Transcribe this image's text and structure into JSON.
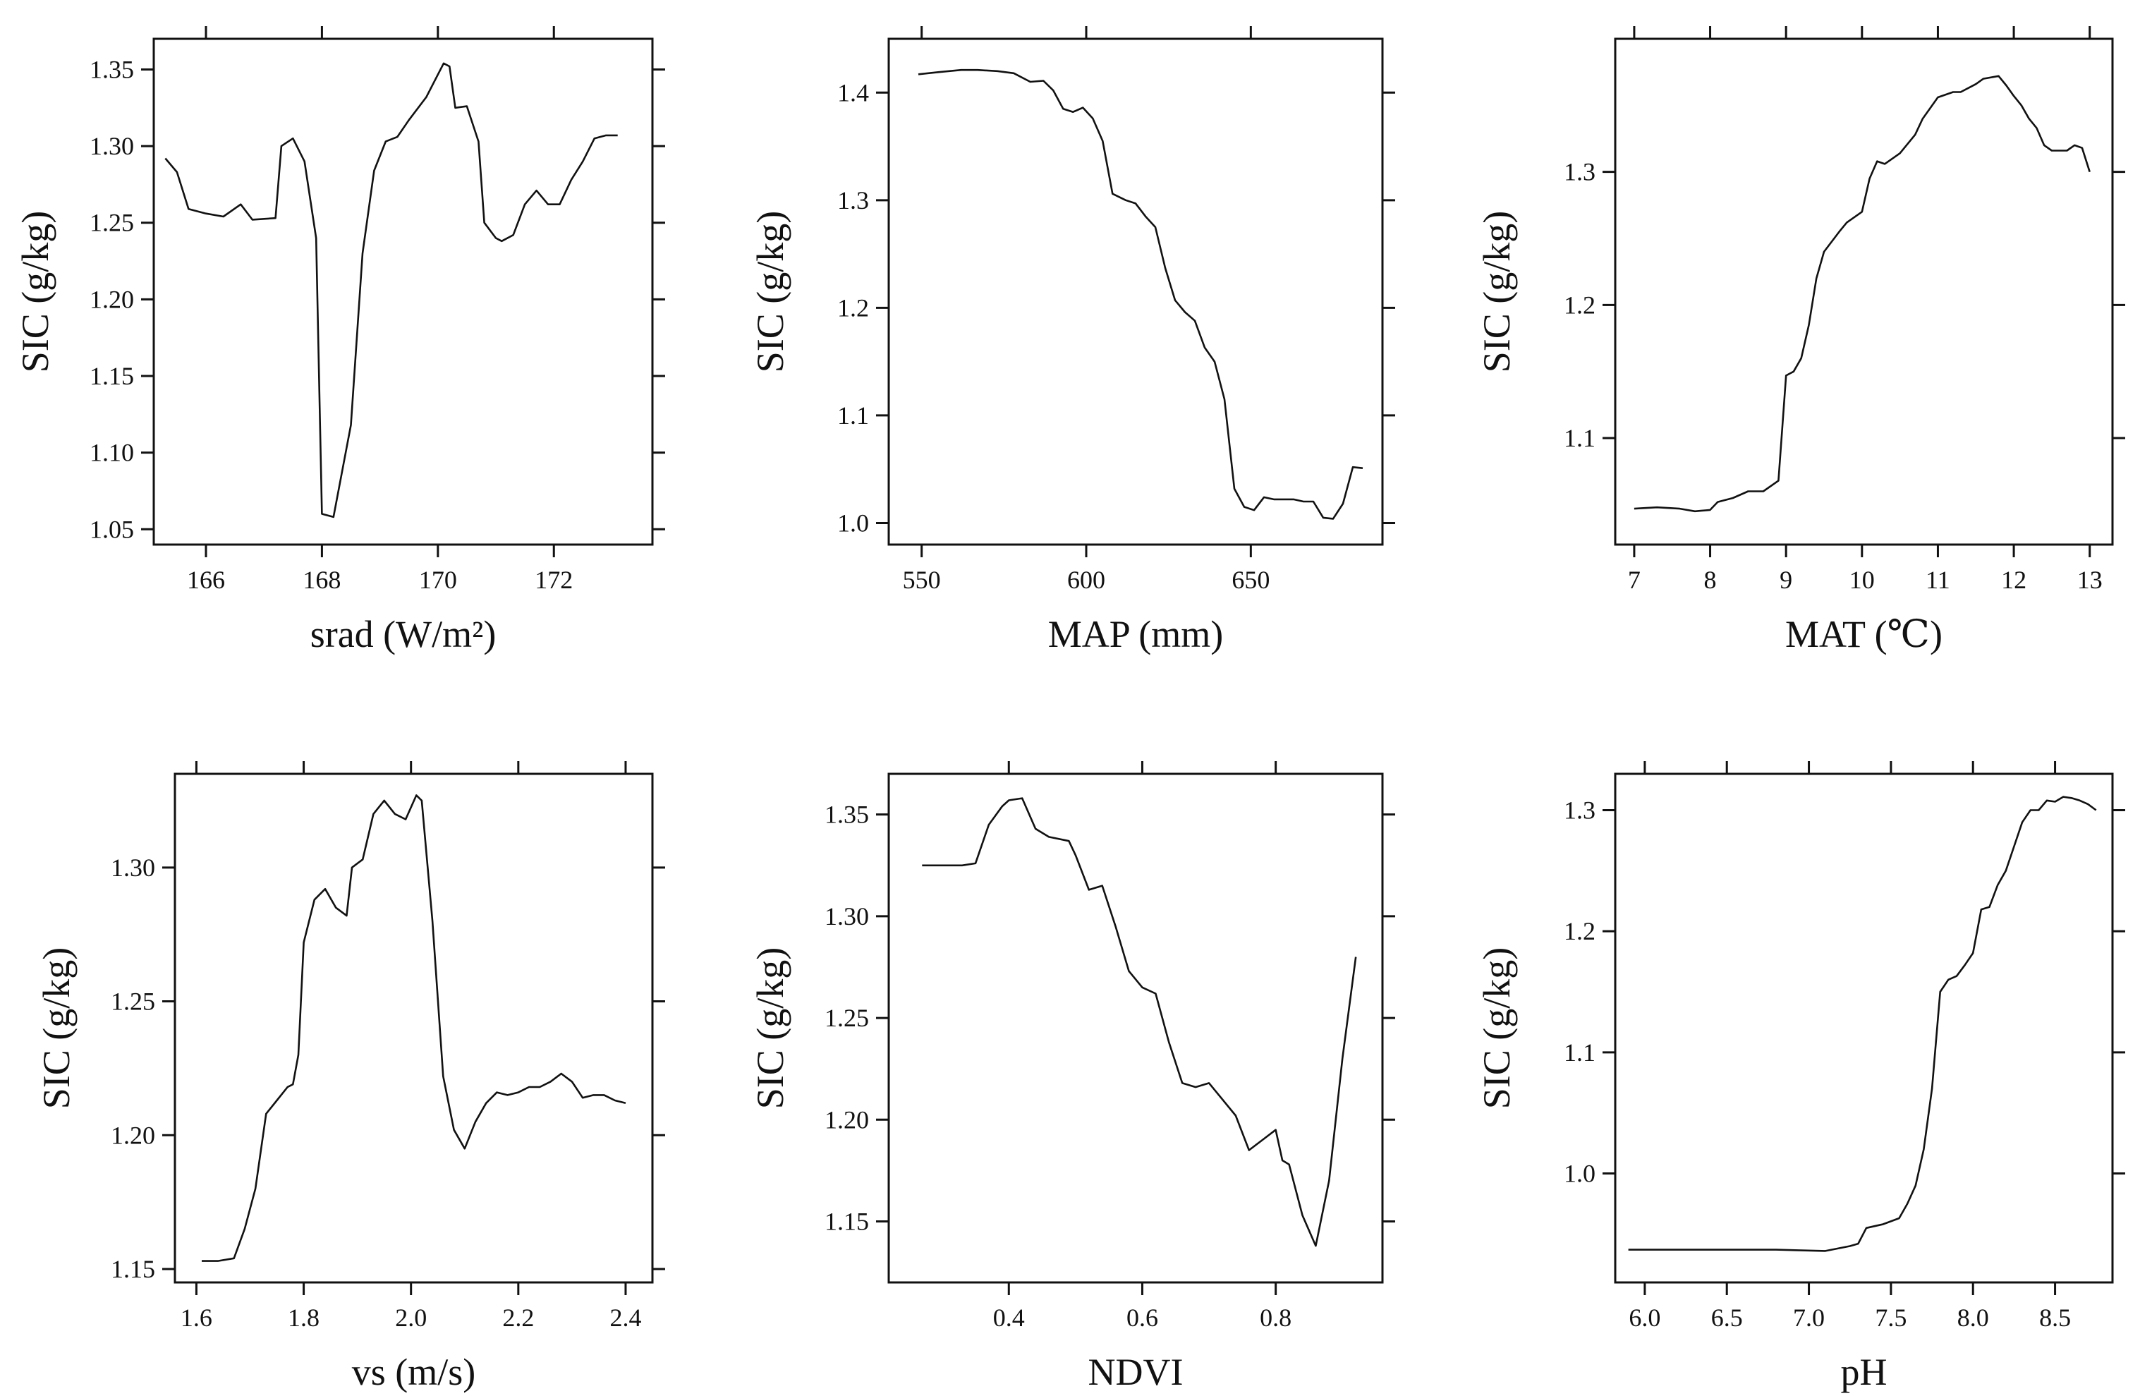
{
  "figure": {
    "panel_count": 6
  },
  "chart_data": [
    {
      "type": "line",
      "title": "",
      "xlabel": "srad (W/m²)",
      "ylabel": "SIC (g/kg)",
      "xlim": [
        165.1,
        173.7
      ],
      "ylim": [
        1.04,
        1.37
      ],
      "xticks": [
        166,
        168,
        170,
        172
      ],
      "xtick_labels": [
        "166",
        "168",
        "170",
        "172"
      ],
      "yticks": [
        1.05,
        1.1,
        1.15,
        1.2,
        1.25,
        1.3,
        1.35
      ],
      "ytick_labels": [
        "1.05",
        "1.10",
        "1.15",
        "1.20",
        "1.25",
        "1.30",
        "1.35"
      ],
      "x": [
        165.3,
        165.5,
        165.7,
        166.0,
        166.3,
        166.6,
        166.8,
        167.2,
        167.3,
        167.5,
        167.7,
        167.9,
        168.0,
        168.2,
        168.5,
        168.7,
        168.9,
        169.1,
        169.3,
        169.5,
        169.8,
        170.1,
        170.2,
        170.3,
        170.5,
        170.7,
        170.8,
        171.0,
        171.1,
        171.3,
        171.5,
        171.7,
        171.9,
        172.1,
        172.3,
        172.5,
        172.7,
        172.9,
        173.1
      ],
      "y": [
        1.292,
        1.283,
        1.259,
        1.256,
        1.254,
        1.262,
        1.252,
        1.253,
        1.3,
        1.305,
        1.29,
        1.24,
        1.06,
        1.058,
        1.118,
        1.23,
        1.284,
        1.303,
        1.306,
        1.317,
        1.332,
        1.354,
        1.352,
        1.325,
        1.326,
        1.303,
        1.25,
        1.24,
        1.238,
        1.242,
        1.262,
        1.271,
        1.262,
        1.262,
        1.278,
        1.29,
        1.305,
        1.307,
        1.307
      ]
    },
    {
      "type": "line",
      "title": "",
      "xlabel": "MAP (mm)",
      "ylabel": "SIC (g/kg)",
      "xlim": [
        540,
        690
      ],
      "ylim": [
        0.98,
        1.45
      ],
      "xticks": [
        550,
        600,
        650
      ],
      "xtick_labels": [
        "550",
        "600",
        "650"
      ],
      "yticks": [
        1.0,
        1.1,
        1.2,
        1.3,
        1.4
      ],
      "ytick_labels": [
        "1.0",
        "1.1",
        "1.2",
        "1.3",
        "1.4"
      ],
      "x": [
        549,
        555,
        562,
        567,
        573,
        578,
        583,
        587,
        590,
        593,
        596,
        599,
        602,
        605,
        608,
        612,
        615,
        618,
        621,
        624,
        627,
        630,
        633,
        636,
        639,
        642,
        645,
        648,
        651,
        654,
        657,
        660,
        663,
        666,
        669,
        672,
        675,
        678,
        681,
        684
      ],
      "y": [
        1.417,
        1.419,
        1.421,
        1.421,
        1.42,
        1.418,
        1.41,
        1.411,
        1.402,
        1.385,
        1.382,
        1.386,
        1.376,
        1.355,
        1.306,
        1.3,
        1.297,
        1.285,
        1.275,
        1.237,
        1.207,
        1.196,
        1.188,
        1.163,
        1.15,
        1.115,
        1.032,
        1.015,
        1.012,
        1.024,
        1.022,
        1.022,
        1.022,
        1.02,
        1.02,
        1.005,
        1.004,
        1.018,
        1.052,
        1.051
      ]
    },
    {
      "type": "line",
      "title": "",
      "xlabel": "MAT (℃)",
      "ylabel": "SIC (g/kg)",
      "xlim": [
        6.75,
        13.3
      ],
      "ylim": [
        1.02,
        1.4
      ],
      "xticks": [
        7,
        8,
        9,
        10,
        11,
        12,
        13
      ],
      "xtick_labels": [
        "7",
        "8",
        "9",
        "10",
        "11",
        "12",
        "13"
      ],
      "yticks": [
        1.1,
        1.2,
        1.3
      ],
      "ytick_labels": [
        "1.1",
        "1.2",
        "1.3"
      ],
      "x": [
        7.0,
        7.3,
        7.6,
        7.8,
        8.0,
        8.1,
        8.3,
        8.5,
        8.7,
        8.9,
        9.0,
        9.1,
        9.2,
        9.3,
        9.4,
        9.5,
        9.7,
        9.8,
        10.0,
        10.1,
        10.2,
        10.3,
        10.5,
        10.7,
        10.8,
        11.0,
        11.2,
        11.3,
        11.5,
        11.6,
        11.8,
        11.9,
        12.0,
        12.1,
        12.2,
        12.3,
        12.4,
        12.5,
        12.7,
        12.8,
        12.9,
        13.0
      ],
      "y": [
        1.047,
        1.048,
        1.047,
        1.045,
        1.046,
        1.052,
        1.055,
        1.06,
        1.06,
        1.068,
        1.147,
        1.15,
        1.16,
        1.185,
        1.22,
        1.24,
        1.255,
        1.262,
        1.27,
        1.295,
        1.308,
        1.306,
        1.314,
        1.328,
        1.34,
        1.356,
        1.36,
        1.36,
        1.366,
        1.37,
        1.372,
        1.365,
        1.357,
        1.35,
        1.34,
        1.333,
        1.32,
        1.316,
        1.316,
        1.32,
        1.318,
        1.3
      ]
    },
    {
      "type": "line",
      "title": "",
      "xlabel": "vs (m/s)",
      "ylabel": "SIC (g/kg)",
      "xlim": [
        1.56,
        2.45
      ],
      "ylim": [
        1.145,
        1.335
      ],
      "xticks": [
        1.6,
        1.8,
        2.0,
        2.2,
        2.4
      ],
      "xtick_labels": [
        "1.6",
        "1.8",
        "2.0",
        "2.2",
        "2.4"
      ],
      "yticks": [
        1.15,
        1.2,
        1.25,
        1.3
      ],
      "ytick_labels": [
        "1.15",
        "1.20",
        "1.25",
        "1.30"
      ],
      "x": [
        1.61,
        1.64,
        1.67,
        1.69,
        1.71,
        1.73,
        1.75,
        1.77,
        1.78,
        1.79,
        1.8,
        1.82,
        1.84,
        1.86,
        1.88,
        1.89,
        1.91,
        1.93,
        1.95,
        1.97,
        1.99,
        2.01,
        2.02,
        2.04,
        2.06,
        2.08,
        2.1,
        2.12,
        2.14,
        2.16,
        2.18,
        2.2,
        2.22,
        2.24,
        2.26,
        2.28,
        2.3,
        2.32,
        2.34,
        2.36,
        2.38,
        2.4
      ],
      "y": [
        1.153,
        1.153,
        1.154,
        1.165,
        1.18,
        1.208,
        1.213,
        1.218,
        1.219,
        1.23,
        1.272,
        1.288,
        1.292,
        1.285,
        1.282,
        1.3,
        1.303,
        1.32,
        1.325,
        1.32,
        1.318,
        1.327,
        1.325,
        1.28,
        1.222,
        1.202,
        1.195,
        1.205,
        1.212,
        1.216,
        1.215,
        1.216,
        1.218,
        1.218,
        1.22,
        1.223,
        1.22,
        1.214,
        1.215,
        1.215,
        1.213,
        1.212
      ]
    },
    {
      "type": "line",
      "title": "",
      "xlabel": "NDVI",
      "ylabel": "SIC (g/kg)",
      "xlim": [
        0.22,
        0.96
      ],
      "ylim": [
        1.12,
        1.37
      ],
      "xticks": [
        0.4,
        0.6,
        0.8
      ],
      "xtick_labels": [
        "0.4",
        "0.6",
        "0.8"
      ],
      "yticks": [
        1.15,
        1.2,
        1.25,
        1.3,
        1.35
      ],
      "ytick_labels": [
        "1.15",
        "1.20",
        "1.25",
        "1.30",
        "1.35"
      ],
      "x": [
        0.27,
        0.3,
        0.33,
        0.35,
        0.37,
        0.39,
        0.4,
        0.42,
        0.44,
        0.46,
        0.49,
        0.5,
        0.52,
        0.54,
        0.56,
        0.58,
        0.6,
        0.62,
        0.64,
        0.66,
        0.68,
        0.7,
        0.72,
        0.74,
        0.76,
        0.78,
        0.8,
        0.81,
        0.82,
        0.84,
        0.86,
        0.88,
        0.9,
        0.92
      ],
      "y": [
        1.325,
        1.325,
        1.325,
        1.326,
        1.345,
        1.354,
        1.357,
        1.358,
        1.343,
        1.339,
        1.337,
        1.33,
        1.313,
        1.315,
        1.295,
        1.273,
        1.265,
        1.262,
        1.238,
        1.218,
        1.216,
        1.218,
        1.21,
        1.202,
        1.185,
        1.19,
        1.195,
        1.18,
        1.178,
        1.153,
        1.138,
        1.17,
        1.23,
        1.28
      ]
    },
    {
      "type": "line",
      "title": "",
      "xlabel": "pH",
      "ylabel": "SIC (g/kg)",
      "xlim": [
        5.82,
        8.85
      ],
      "ylim": [
        0.91,
        1.33
      ],
      "xticks": [
        6.0,
        6.5,
        7.0,
        7.5,
        8.0,
        8.5
      ],
      "xtick_labels": [
        "6.0",
        "6.5",
        "7.0",
        "7.5",
        "8.0",
        "8.5"
      ],
      "yticks": [
        1.0,
        1.1,
        1.2,
        1.3
      ],
      "ytick_labels": [
        "1.0",
        "1.1",
        "1.2",
        "1.3"
      ],
      "x": [
        5.9,
        6.2,
        6.5,
        6.8,
        7.1,
        7.25,
        7.3,
        7.35,
        7.45,
        7.55,
        7.6,
        7.65,
        7.7,
        7.75,
        7.8,
        7.85,
        7.9,
        7.95,
        8.0,
        8.05,
        8.1,
        8.15,
        8.2,
        8.25,
        8.3,
        8.35,
        8.4,
        8.45,
        8.5,
        8.55,
        8.6,
        8.65,
        8.7,
        8.75
      ],
      "y": [
        0.937,
        0.937,
        0.937,
        0.937,
        0.936,
        0.94,
        0.942,
        0.955,
        0.958,
        0.963,
        0.975,
        0.99,
        1.02,
        1.07,
        1.15,
        1.16,
        1.163,
        1.172,
        1.182,
        1.218,
        1.22,
        1.238,
        1.25,
        1.27,
        1.29,
        1.3,
        1.3,
        1.308,
        1.307,
        1.311,
        1.31,
        1.308,
        1.305,
        1.3
      ]
    }
  ]
}
